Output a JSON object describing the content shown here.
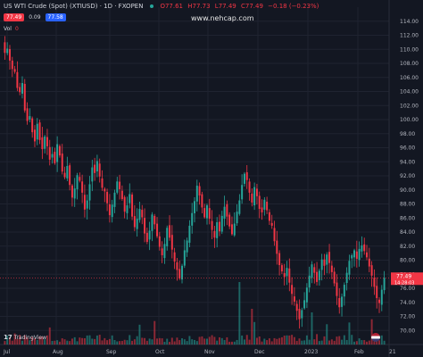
{
  "legend": {
    "symbol": "US WTI Crude (Spot) (XTIUSD) · 1D · FXOPEN",
    "open_label": "O77.61",
    "high_label": "H77.73",
    "low_label": "L77.49",
    "close_label": "C77.49",
    "change_label": "−0.18 (−0.23%)",
    "status_color": "#26a69a"
  },
  "quote": {
    "bid": "77.49",
    "spread": "0.09",
    "ask": "77.58"
  },
  "volume_row": {
    "label": "Vol",
    "value": "0"
  },
  "watermark": "www.nehcap.com",
  "tv_logo": {
    "mark": "17",
    "text": "TradingView"
  },
  "price_label": {
    "price": "77.49",
    "countdown": "14:28:03"
  },
  "colors": {
    "up": "#26a69a",
    "down": "#f23645",
    "bg": "#131722",
    "grid": "#1f2330"
  },
  "chart_data": {
    "type": "candlestick",
    "title": "US WTI Crude (Spot) (XTIUSD) · 1D · FXOPEN",
    "ylim": [
      68,
      116
    ],
    "y_ticks": [
      "114.00",
      "112.00",
      "110.00",
      "108.00",
      "106.00",
      "104.00",
      "102.00",
      "100.00",
      "98.00",
      "96.00",
      "94.00",
      "92.00",
      "90.00",
      "88.00",
      "86.00",
      "84.00",
      "82.00",
      "80.00",
      "78.00",
      "76.00",
      "74.00",
      "72.00",
      "70.00"
    ],
    "x_ticks": [
      "Jul",
      "Aug",
      "Sep",
      "Oct",
      "Nov",
      "Dec",
      "2023",
      "Feb",
      "21"
    ],
    "closes": [
      109.5,
      110.1,
      108.4,
      107.2,
      106.8,
      104.5,
      103.9,
      105.2,
      101.3,
      99.8,
      100.5,
      98.2,
      96.9,
      99.4,
      97.1,
      95.8,
      97.6,
      96.2,
      94.3,
      95.1,
      93.8,
      96.5,
      94.9,
      92.6,
      91.8,
      93.4,
      90.7,
      88.9,
      90.2,
      92.1,
      91.3,
      89.6,
      87.2,
      88.5,
      90.8,
      93.2,
      92.4,
      94.1,
      91.9,
      90.3,
      89.8,
      88.1,
      86.4,
      87.9,
      89.6,
      91.2,
      90.1,
      88.7,
      86.9,
      87.8,
      89.4,
      86.2,
      84.7,
      85.9,
      87.3,
      86.1,
      83.8,
      82.6,
      84.2,
      86.5,
      85.1,
      83.4,
      81.9,
      80.7,
      82.3,
      84.6,
      83.2,
      81.5,
      79.8,
      78.6,
      77.4,
      79.2,
      81.4,
      82.8,
      84.9,
      86.7,
      88.4,
      90.6,
      89.2,
      87.5,
      86.1,
      87.8,
      85.9,
      84.3,
      83.2,
      85.4,
      84.1,
      86.3,
      87.6,
      86.2,
      84.8,
      83.7,
      85.2,
      86.9,
      88.5,
      90.7,
      92.3,
      91.4,
      89.6,
      88.2,
      90.4,
      89.1,
      87.3,
      86.8,
      88.6,
      87.1,
      85.6,
      84.9,
      82.7,
      80.9,
      79.3,
      78.4,
      77.6,
      78.9,
      76.8,
      75.2,
      74.1,
      72.8,
      71.6,
      72.9,
      74.3,
      76.1,
      77.8,
      79.4,
      78.2,
      76.9,
      78.5,
      80.1,
      79.2,
      80.8,
      79.6,
      78.3,
      76.7,
      74.9,
      73.3,
      74.8,
      76.5,
      78.2,
      79.9,
      80.7,
      81.4,
      80.2,
      81.6,
      82.1,
      81.3,
      80.4,
      79.1,
      77.8,
      76.2,
      74.6,
      73.9,
      75.8,
      77.49
    ]
  }
}
